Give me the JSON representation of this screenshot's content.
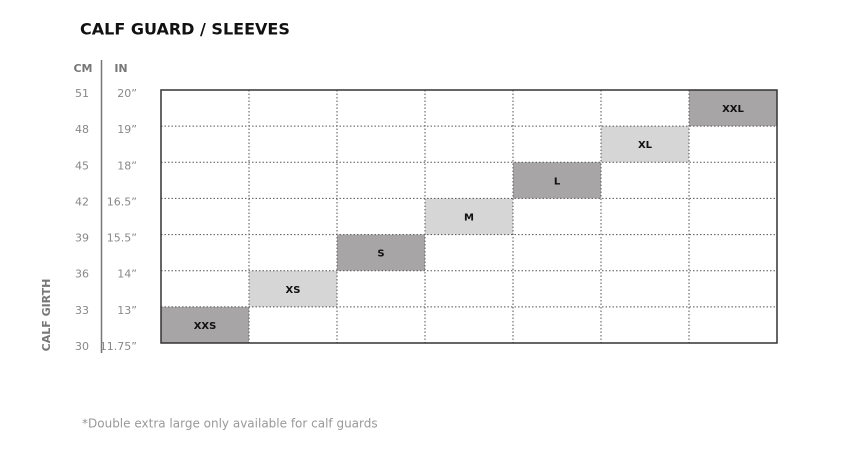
{
  "title": "CALF GUARD / SLEEVES",
  "axis_label": "CALF GIRTH",
  "headers": [
    "CM",
    "IN"
  ],
  "rows": [
    {
      "cm": 51,
      "in": "20”"
    },
    {
      "cm": 48,
      "in": "19”"
    },
    {
      "cm": 45,
      "in": "18”"
    },
    {
      "cm": 42,
      "in": "16.5”"
    },
    {
      "cm": 39,
      "in": "15.5”"
    },
    {
      "cm": 36,
      "in": "14”"
    },
    {
      "cm": 33,
      "in": "13”"
    },
    {
      "cm": 30,
      "in": "11.75”"
    }
  ],
  "sizes": [
    "XXS",
    "XS",
    "S",
    "M",
    "L",
    "XL",
    "XXL"
  ],
  "footnote": "*Double extra large only available for calf guards"
}
